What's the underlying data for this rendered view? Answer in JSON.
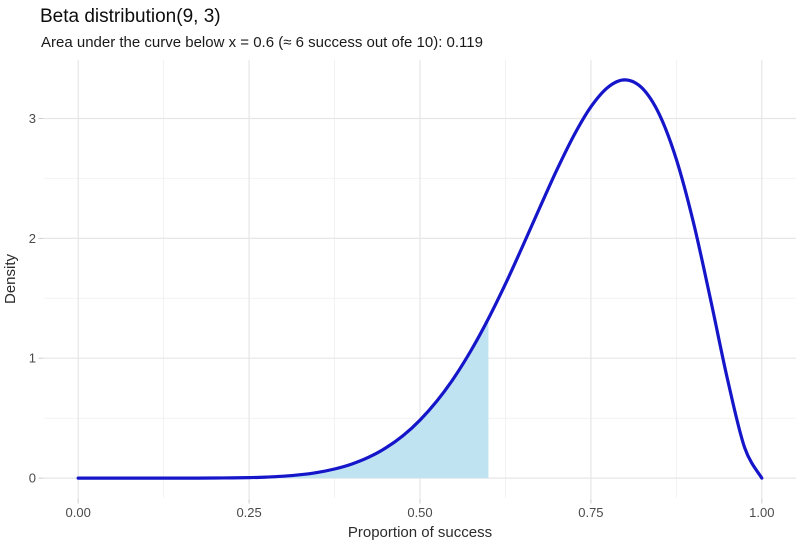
{
  "chart_data": {
    "type": "area",
    "title": "Beta distribution(9, 3)",
    "subtitle": "Area under the curve below x = 0.6 (≈ 6 success out ofe 10): 0.119",
    "xlabel": "Proportion of success",
    "ylabel": "Density",
    "distribution": {
      "family": "beta",
      "shape1": 9,
      "shape2": 3
    },
    "shaded_region": {
      "x_from": 0.0,
      "x_to": 0.6,
      "area_value": 0.119
    },
    "xlim": [
      0,
      1
    ],
    "ylim": [
      0,
      3.321889
    ],
    "expansion": 0.05,
    "grid": "on",
    "legend": "none",
    "x_ticks": [
      0,
      0.25,
      0.5,
      0.75,
      1
    ],
    "x_tick_labels": [
      "0.00",
      "0.25",
      "0.50",
      "0.75",
      "1.00"
    ],
    "x_minor_ticks": [
      0.125,
      0.375,
      0.625,
      0.875
    ],
    "y_ticks": [
      0,
      1,
      2,
      3
    ],
    "y_tick_labels": [
      "0",
      "1",
      "2",
      "3"
    ],
    "y_minor_ticks": [
      0.5,
      1.5,
      2.5
    ],
    "curve": {
      "x": [
        0,
        0.025,
        0.05,
        0.075,
        0.1,
        0.125,
        0.15,
        0.175,
        0.2,
        0.225,
        0.25,
        0.275,
        0.3,
        0.325,
        0.35,
        0.375,
        0.4,
        0.425,
        0.45,
        0.475,
        0.5,
        0.525,
        0.55,
        0.575,
        0.6,
        0.625,
        0.65,
        0.675,
        0.7,
        0.725,
        0.75,
        0.775,
        0.8,
        0.825,
        0.85,
        0.875,
        0.9,
        0.925,
        0.95,
        0.975,
        1
      ],
      "y": [
        0,
        0,
        0,
        0,
        4e-06,
        2.3e-05,
        9.2e-05,
        0.000296,
        0.000811,
        0.001953,
        0.004249,
        0.00851,
        0.015914,
        0.028072,
        0.047095,
        0.075616,
        0.116785,
        0.174202,
        0.251785,
        0.353567,
        0.483398,
        0.644565,
        0.839328,
        1.068379,
        1.330256,
        1.62072,
        1.932183,
        2.253212,
        2.568219,
        2.857424,
        3.097231,
        3.261248,
        3.321889,
        3.253216,
        3.034863,
        2.6576,
        2.130813,
        1.492319,
        0.820983,
        0.252651,
        0
      ]
    },
    "colors": {
      "curve": "#1515c9",
      "shade_fill": "#bfe3f1",
      "grid_major": "#e6e6e6",
      "grid_minor": "#f2f2f2",
      "tick_mark": "#cccccc",
      "tick_label": "#4a4a4a",
      "axis_title": "#2b2b2b",
      "title_text": "#0d0d0d",
      "background": "#ffffff"
    }
  }
}
